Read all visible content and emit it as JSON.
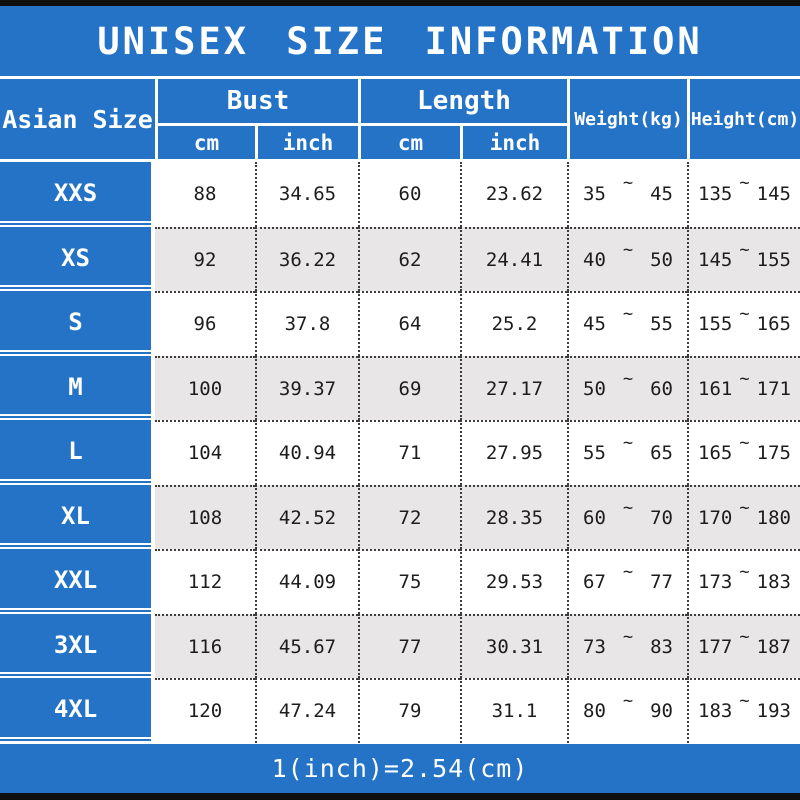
{
  "title": "UNISEX SIZE INFORMATION",
  "footer": {
    "note": "1(inch)=2.54(cm)"
  },
  "colors": {
    "accent_blue": "#2473c6",
    "row_alt_gray": "#e8e6e7",
    "bar_black": "#0f0f0f",
    "text_dark": "#1d1d1d",
    "text_white": "#ffffff"
  },
  "table": {
    "headers": {
      "asian_size": "Asian Size",
      "bust": "Bust",
      "length": "Length",
      "weight": "Weight(kg)",
      "height": "Height(cm)",
      "unit_cm": "cm",
      "unit_inch": "inch"
    },
    "range_separator": "~",
    "rows": [
      {
        "size": "XXS",
        "bust_cm": "88",
        "bust_inch": "34.65",
        "length_cm": "60",
        "length_inch": "23.62",
        "weight_min": "35",
        "weight_max": "45",
        "height_min": "135",
        "height_max": "145"
      },
      {
        "size": "XS",
        "bust_cm": "92",
        "bust_inch": "36.22",
        "length_cm": "62",
        "length_inch": "24.41",
        "weight_min": "40",
        "weight_max": "50",
        "height_min": "145",
        "height_max": "155"
      },
      {
        "size": "S",
        "bust_cm": "96",
        "bust_inch": "37.8",
        "length_cm": "64",
        "length_inch": "25.2",
        "weight_min": "45",
        "weight_max": "55",
        "height_min": "155",
        "height_max": "165"
      },
      {
        "size": "M",
        "bust_cm": "100",
        "bust_inch": "39.37",
        "length_cm": "69",
        "length_inch": "27.17",
        "weight_min": "50",
        "weight_max": "60",
        "height_min": "161",
        "height_max": "171"
      },
      {
        "size": "L",
        "bust_cm": "104",
        "bust_inch": "40.94",
        "length_cm": "71",
        "length_inch": "27.95",
        "weight_min": "55",
        "weight_max": "65",
        "height_min": "165",
        "height_max": "175"
      },
      {
        "size": "XL",
        "bust_cm": "108",
        "bust_inch": "42.52",
        "length_cm": "72",
        "length_inch": "28.35",
        "weight_min": "60",
        "weight_max": "70",
        "height_min": "170",
        "height_max": "180"
      },
      {
        "size": "XXL",
        "bust_cm": "112",
        "bust_inch": "44.09",
        "length_cm": "75",
        "length_inch": "29.53",
        "weight_min": "67",
        "weight_max": "77",
        "height_min": "173",
        "height_max": "183"
      },
      {
        "size": "3XL",
        "bust_cm": "116",
        "bust_inch": "45.67",
        "length_cm": "77",
        "length_inch": "30.31",
        "weight_min": "73",
        "weight_max": "83",
        "height_min": "177",
        "height_max": "187"
      },
      {
        "size": "4XL",
        "bust_cm": "120",
        "bust_inch": "47.24",
        "length_cm": "79",
        "length_inch": "31.1",
        "weight_min": "80",
        "weight_max": "90",
        "height_min": "183",
        "height_max": "193"
      }
    ]
  }
}
